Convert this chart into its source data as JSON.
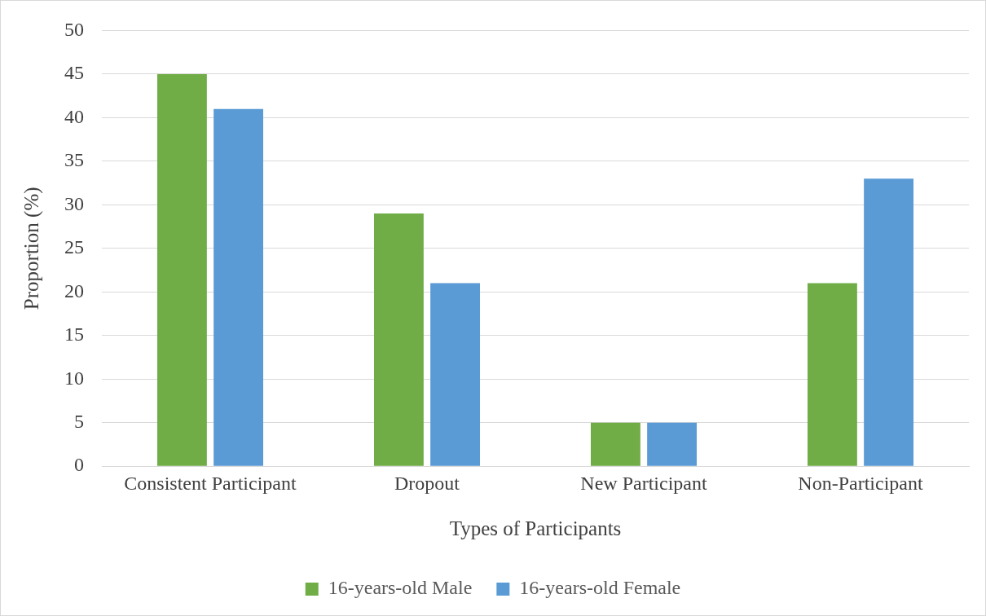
{
  "chart_data": {
    "type": "bar",
    "xlabel": "Types of Participants",
    "ylabel": "Proportion (%)",
    "categories": [
      "Consistent Participant",
      "Dropout",
      "New Participant",
      "Non-Participant"
    ],
    "series": [
      {
        "name": "16-years-old Male",
        "color": "#70ad47",
        "values": [
          45,
          29,
          5,
          21
        ]
      },
      {
        "name": "16-years-old Female",
        "color": "#5b9bd5",
        "values": [
          41,
          21,
          5,
          33
        ]
      }
    ],
    "ylim": [
      0,
      50
    ],
    "yticks": [
      0,
      5,
      10,
      15,
      20,
      25,
      30,
      35,
      40,
      45,
      50
    ],
    "grid": "y",
    "legend": "bottom"
  }
}
